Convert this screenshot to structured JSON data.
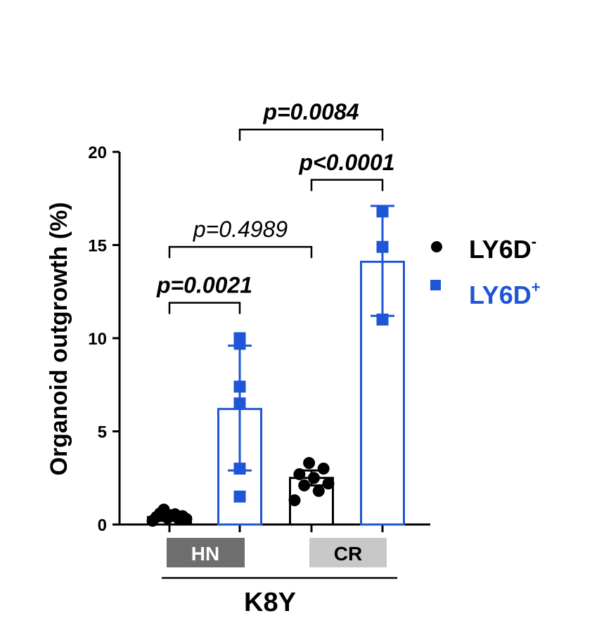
{
  "chart_data": {
    "type": "bar",
    "ylabel": "Organoid outgrowth (%)",
    "xlabel": "K8Y",
    "ylim": [
      0,
      20
    ],
    "yticks": [
      "0",
      "5",
      "10",
      "15",
      "20"
    ],
    "grid": false,
    "legend_position": "right",
    "colors": {
      "LY6D-": "#000000",
      "LY6D+": "#1f56d6",
      "HN_box": "#6e6e6e",
      "CR_box": "#c8c8c8"
    },
    "groups": [
      {
        "label": "HN",
        "category_index": [
          0,
          1
        ]
      },
      {
        "label": "CR",
        "category_index": [
          2,
          3
        ]
      }
    ],
    "series": [
      {
        "name": "LY6D",
        "sign": "-",
        "marker": "circle"
      },
      {
        "name": "LY6D",
        "sign": "+",
        "marker": "square"
      }
    ],
    "bars": [
      {
        "group": "HN",
        "series": "LY6D-",
        "mean": 0.4,
        "err_low": 0.2,
        "err_high": 0.6,
        "points": [
          0.2,
          0.3,
          0.35,
          0.4,
          0.45,
          0.5,
          0.6,
          0.3,
          0.55,
          0.8
        ]
      },
      {
        "group": "HN",
        "series": "LY6D+",
        "mean": 6.2,
        "err_low": 2.9,
        "err_high": 9.6,
        "points": [
          1.5,
          3.0,
          6.5,
          7.4,
          9.7,
          10.0
        ]
      },
      {
        "group": "CR",
        "series": "LY6D-",
        "mean": 2.5,
        "err_low": 2.1,
        "err_high": 2.9,
        "points": [
          1.3,
          1.8,
          2.1,
          2.2,
          2.5,
          2.7,
          3.0,
          3.3
        ]
      },
      {
        "group": "CR",
        "series": "LY6D+",
        "mean": 14.1,
        "err_low": 11.2,
        "err_high": 17.1,
        "points": [
          11.0,
          14.9,
          16.8
        ]
      }
    ],
    "annotations": [
      {
        "text": "p=0.0021",
        "bold": true,
        "from": 0,
        "to": 1,
        "y": 11.9
      },
      {
        "text": "p=0.4989",
        "bold": false,
        "from": 0,
        "to": 2,
        "y": 14.9
      },
      {
        "text": "p<0.0001",
        "bold": true,
        "from": 2,
        "to": 3,
        "y": 18.5
      },
      {
        "text": "p=0.0084",
        "bold": true,
        "from": 1,
        "to": 3,
        "y": 21.2
      }
    ]
  },
  "legend": [
    {
      "label": "LY6D",
      "sup": "-",
      "color": "#000000",
      "marker": "circle"
    },
    {
      "label": "LY6D",
      "sup": "+",
      "color": "#1f56d6",
      "marker": "square"
    }
  ]
}
